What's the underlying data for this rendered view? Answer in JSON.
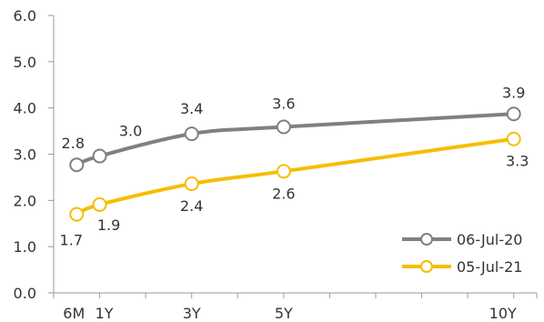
{
  "chart_data": {
    "type": "line",
    "title": "",
    "xlabel": "",
    "ylabel": "",
    "x_categories": [
      "6M",
      "1Y",
      "3Y",
      "5Y",
      "10Y"
    ],
    "x_years": [
      0.5,
      1,
      3,
      5,
      10
    ],
    "x_axis_max_years": 10.5,
    "ylim": [
      0,
      6
    ],
    "yticks": [
      "0.0",
      "1.0",
      "2.0",
      "3.0",
      "4.0",
      "5.0",
      "6.0"
    ],
    "yticks_values": [
      0,
      1,
      2,
      3,
      4,
      5,
      6
    ],
    "grid": false,
    "legend_position": "bottom-right",
    "series": [
      {
        "name": "06-Jul-20",
        "color": "#808080",
        "values": [
          2.77,
          2.96,
          3.44,
          3.59,
          3.87
        ],
        "labels": [
          "2.8",
          "3.0",
          "3.4",
          "3.6",
          "3.9"
        ]
      },
      {
        "name": "05-Jul-21",
        "color": "#F5BE00",
        "values": [
          1.7,
          1.91,
          2.36,
          2.63,
          3.33
        ],
        "labels": [
          "1.7",
          "1.9",
          "2.4",
          "2.6",
          "3.3"
        ]
      }
    ]
  }
}
